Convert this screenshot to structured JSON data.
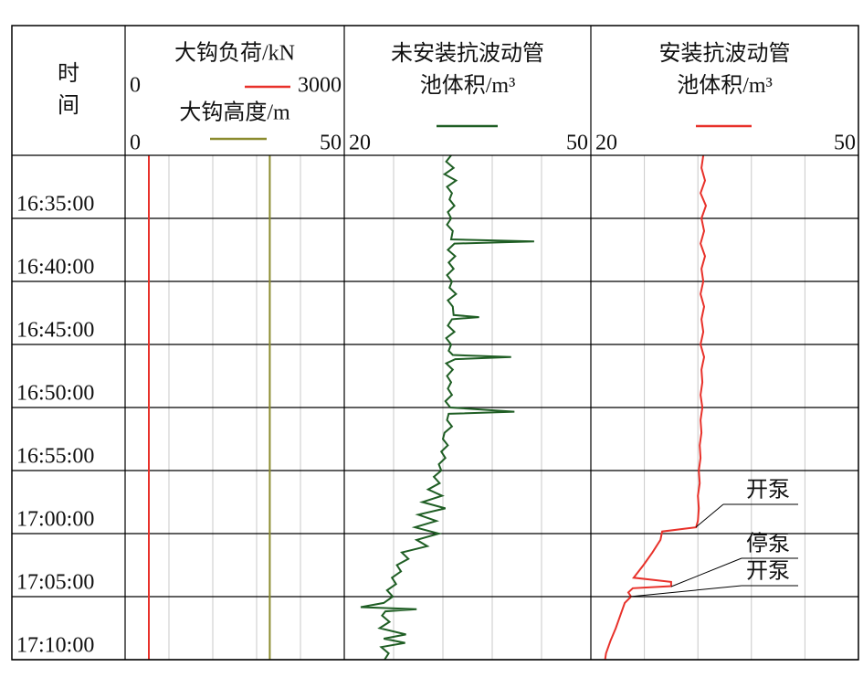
{
  "chart_data": {
    "type": "well-log",
    "time_label": "时间",
    "ylim": [
      "16:30:00",
      "17:10:00"
    ],
    "yticks": [
      "16:35:00",
      "16:40:00",
      "16:45:00",
      "16:50:00",
      "16:55:00",
      "17:00:00",
      "17:05:00",
      "17:10:00"
    ],
    "grid": true,
    "tracks": [
      {
        "series": [
          {
            "name": "大钩负荷/kN",
            "color": "#e8312a",
            "xlim": [
              0,
              3000
            ],
            "xticks": [
              0,
              3000
            ],
            "x": [
              "16:30:00",
              "17:10:00"
            ],
            "values": [
              325,
              325
            ]
          },
          {
            "name": "大钩高度/m",
            "color": "#8b8b2e",
            "xlim": [
              0,
              50
            ],
            "xticks": [
              0,
              50
            ],
            "x": [
              "16:30:00",
              "17:10:00"
            ],
            "values": [
              33,
              33
            ]
          }
        ]
      },
      {
        "series": [
          {
            "name": "未安装抗波动管\n池体积/m³",
            "color": "#1f5e24",
            "xlim": [
              20,
              50
            ],
            "xticks": [
              20,
              50
            ],
            "x": [
              "16:30:00",
              "16:30:30",
              "16:31:00",
              "16:31:30",
              "16:32:00",
              "16:32:30",
              "16:33:00",
              "16:33:30",
              "16:34:00",
              "16:34:30",
              "16:35:00",
              "16:35:30",
              "16:36:00",
              "16:36:40",
              "16:36:50",
              "16:37:00",
              "16:37:30",
              "16:38:00",
              "16:38:30",
              "16:39:00",
              "16:39:30",
              "16:40:00",
              "16:40:30",
              "16:41:00",
              "16:41:30",
              "16:42:00",
              "16:42:40",
              "16:42:50",
              "16:43:00",
              "16:43:30",
              "16:44:00",
              "16:44:30",
              "16:45:00",
              "16:45:30",
              "16:45:50",
              "16:46:00",
              "16:46:10",
              "16:46:30",
              "16:47:00",
              "16:47:30",
              "16:48:00",
              "16:48:30",
              "16:49:00",
              "16:49:30",
              "16:50:00",
              "16:50:20",
              "16:50:30",
              "16:51:00",
              "16:51:30",
              "16:52:00",
              "16:52:30",
              "16:53:00",
              "16:53:30",
              "16:54:00",
              "16:54:30",
              "16:55:00",
              "16:55:30",
              "16:56:00",
              "16:56:30",
              "16:57:00",
              "16:57:30",
              "16:58:00",
              "16:58:30",
              "16:59:00",
              "16:59:30",
              "17:00:00",
              "17:00:30",
              "17:01:00",
              "17:01:30",
              "17:02:00",
              "17:02:30",
              "17:03:00",
              "17:03:30",
              "17:04:00",
              "17:04:30",
              "17:05:00",
              "17:05:30",
              "17:05:50",
              "17:06:00",
              "17:06:10",
              "17:06:30",
              "17:07:00",
              "17:07:30",
              "17:08:00",
              "17:08:20",
              "17:08:40",
              "17:09:00",
              "17:09:30",
              "17:10:00"
            ],
            "values": [
              33.0,
              32.4,
              33.3,
              32.2,
              33.6,
              32.5,
              33.1,
              32.8,
              33.4,
              32.6,
              33.0,
              32.5,
              33.2,
              33.0,
              43.1,
              33.4,
              32.6,
              33.5,
              32.7,
              33.3,
              32.5,
              33.1,
              32.8,
              33.6,
              32.6,
              33.2,
              33.3,
              36.4,
              33.1,
              32.6,
              33.4,
              32.4,
              33.0,
              32.7,
              33.2,
              40.3,
              33.5,
              32.4,
              33.2,
              32.5,
              33.0,
              32.6,
              33.1,
              32.3,
              32.9,
              40.7,
              32.7,
              32.5,
              33.1,
              32.2,
              32.0,
              32.6,
              31.8,
              32.3,
              31.5,
              31.8,
              30.9,
              31.6,
              30.2,
              31.9,
              29.5,
              32.3,
              29.0,
              31.2,
              28.6,
              31.5,
              28.8,
              30.1,
              27.0,
              27.8,
              26.4,
              26.9,
              25.8,
              26.3,
              25.2,
              25.9,
              24.8,
              22.0,
              28.8,
              25.0,
              24.6,
              25.5,
              24.3,
              27.5,
              24.8,
              27.4,
              24.5,
              25.4,
              24.9
            ]
          }
        ]
      },
      {
        "series": [
          {
            "name": "安装抗波动管\n池体积/m³",
            "color": "#e8312a",
            "xlim": [
              20,
              50
            ],
            "xticks": [
              20,
              50
            ],
            "x": [
              "16:30:00",
              "16:31:00",
              "16:32:00",
              "16:33:00",
              "16:34:00",
              "16:35:00",
              "16:36:00",
              "16:37:00",
              "16:38:00",
              "16:39:00",
              "16:40:00",
              "16:41:00",
              "16:42:00",
              "16:43:00",
              "16:44:00",
              "16:45:00",
              "16:46:00",
              "16:47:00",
              "16:48:00",
              "16:49:00",
              "16:50:00",
              "16:51:00",
              "16:52:00",
              "16:53:00",
              "16:54:00",
              "16:55:00",
              "16:56:00",
              "16:57:00",
              "16:58:00",
              "16:59:00",
              "16:59:30",
              "16:59:50",
              "17:00:30",
              "17:01:30",
              "17:02:30",
              "17:03:30",
              "17:03:50",
              "17:04:10",
              "17:04:20",
              "17:04:40",
              "17:05:00",
              "17:05:30",
              "17:06:30",
              "17:07:30",
              "17:08:30",
              "17:09:30",
              "17:10:00"
            ],
            "values": [
              32.6,
              32.4,
              32.8,
              32.3,
              32.9,
              32.4,
              32.7,
              32.3,
              32.8,
              32.4,
              32.6,
              32.3,
              32.7,
              32.4,
              32.6,
              32.3,
              32.7,
              32.4,
              32.5,
              32.3,
              32.5,
              32.3,
              32.4,
              32.2,
              32.3,
              32.1,
              32.2,
              32.0,
              32.1,
              32.0,
              31.8,
              28.0,
              27.8,
              26.9,
              25.9,
              24.8,
              29.0,
              29.0,
              24.7,
              24.2,
              24.5,
              23.8,
              23.3,
              22.8,
              22.2,
              21.7,
              21.6
            ]
          }
        ]
      }
    ],
    "annotations": [
      "开泵",
      "停泵",
      "开泵"
    ]
  }
}
